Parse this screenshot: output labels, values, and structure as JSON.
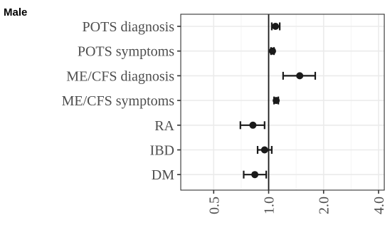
{
  "chart_data": {
    "type": "scatter",
    "subtype": "forest-plot",
    "title": "Male",
    "xlabel": "",
    "ylabel": "",
    "x_scale": "log",
    "xlim": [
      0.33,
      4.3
    ],
    "x_ticks": [
      0.5,
      1.0,
      2.0,
      4.0
    ],
    "x_tick_labels": [
      "0.5",
      "1.0",
      "2.0",
      "4.0"
    ],
    "reference_line": 1.0,
    "grid": true,
    "categories": [
      "POTS diagnosis",
      "POTS symptoms",
      "ME/CFS diagnosis",
      "ME/CFS symptoms",
      "RA",
      "IBD",
      "DM"
    ],
    "estimates": [
      1.09,
      1.05,
      1.48,
      1.1,
      0.82,
      0.95,
      0.84
    ],
    "lower": [
      1.04,
      1.03,
      1.2,
      1.07,
      0.7,
      0.87,
      0.73
    ],
    "upper": [
      1.15,
      1.07,
      1.8,
      1.13,
      0.95,
      1.04,
      0.97
    ]
  }
}
